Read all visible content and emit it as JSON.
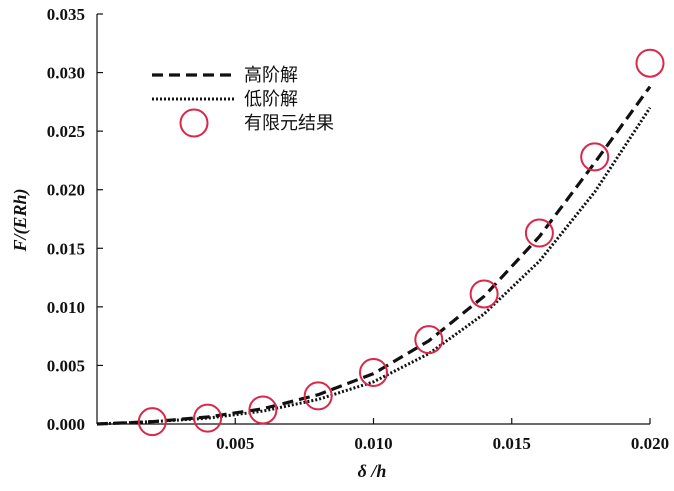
{
  "chart_data": {
    "type": "line",
    "title": "",
    "xlabel": "δ /h",
    "ylabel": "F/(ERh)",
    "xlim": [
      0.0,
      0.02
    ],
    "ylim": [
      0.0,
      0.035
    ],
    "x_ticks": [
      0.005,
      0.01,
      0.015,
      0.02
    ],
    "x_tick_labels": [
      "0.005",
      "0.010",
      "0.015",
      "0.020"
    ],
    "y_ticks": [
      0.0,
      0.005,
      0.01,
      0.015,
      0.02,
      0.025,
      0.03,
      0.035
    ],
    "y_tick_labels": [
      "0.000",
      "0.005",
      "0.010",
      "0.015",
      "0.020",
      "0.025",
      "0.030",
      "0.035"
    ],
    "grid": false,
    "legend_position": "top-left",
    "series": [
      {
        "name": "高阶解",
        "style": "dashed",
        "color": "#111111",
        "x": [
          0.0,
          0.002,
          0.004,
          0.006,
          0.008,
          0.01,
          0.012,
          0.014,
          0.016,
          0.018,
          0.02
        ],
        "y": [
          0.0,
          0.0002,
          0.0006,
          0.0013,
          0.0025,
          0.0043,
          0.0071,
          0.0109,
          0.016,
          0.0223,
          0.0288
        ]
      },
      {
        "name": "低阶解",
        "style": "dotted",
        "color": "#111111",
        "x": [
          0.0,
          0.002,
          0.004,
          0.006,
          0.008,
          0.01,
          0.012,
          0.014,
          0.016,
          0.018,
          0.02
        ],
        "y": [
          0.0,
          0.0002,
          0.0005,
          0.0011,
          0.0021,
          0.0036,
          0.006,
          0.0094,
          0.0139,
          0.0198,
          0.027
        ]
      },
      {
        "name": "有限元结果",
        "style": "markers",
        "color": "#d8294a",
        "x": [
          0.002,
          0.004,
          0.006,
          0.008,
          0.01,
          0.012,
          0.014,
          0.016,
          0.018,
          0.02
        ],
        "y": [
          0.0002,
          0.0005,
          0.0012,
          0.0024,
          0.0044,
          0.0072,
          0.0111,
          0.0163,
          0.0228,
          0.0308
        ]
      }
    ]
  }
}
